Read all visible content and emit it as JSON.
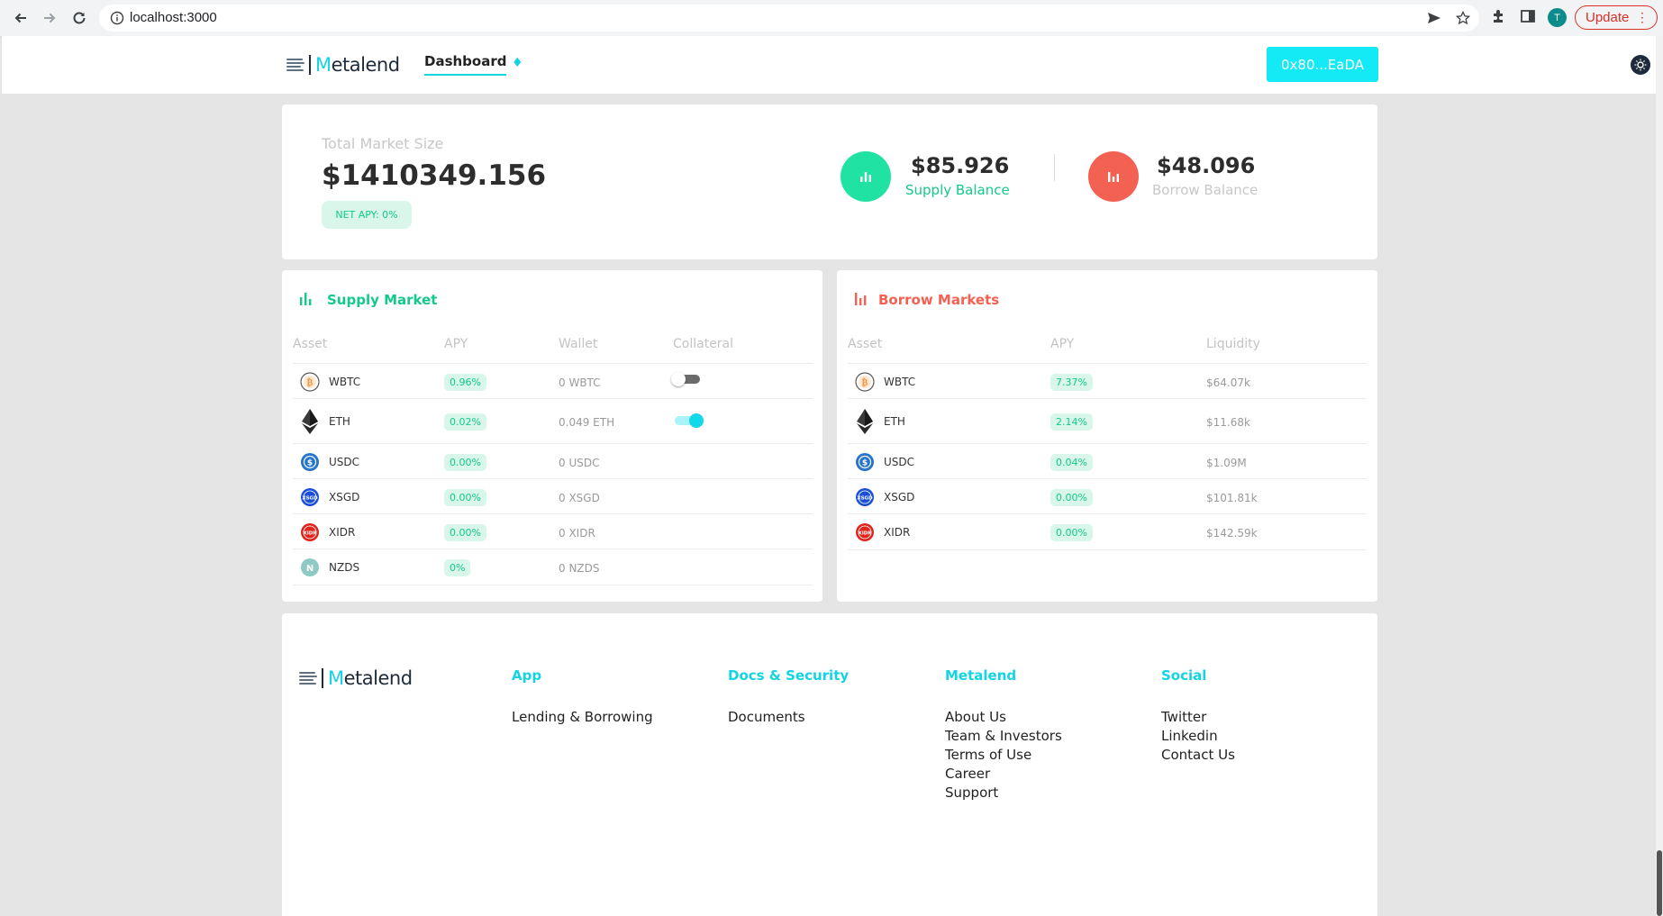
{
  "browser": {
    "url": "localhost:3000",
    "profile_initial": "T",
    "update_label": "Update"
  },
  "header": {
    "logo_text_accent": "M",
    "logo_text_rest": "etalend",
    "nav_dashboard": "Dashboard",
    "wallet_address": "0x80...EaDA"
  },
  "summary": {
    "total_market_size_label": "Total Market Size",
    "total_market_size_value": "$1410349.156",
    "net_apy": "NET APY: 0%",
    "supply_balance_value": "$85.926",
    "supply_balance_label": "Supply Balance",
    "borrow_balance_value": "$48.096",
    "borrow_balance_label": "Borrow Balance"
  },
  "supply_market": {
    "title": "Supply Market",
    "columns": [
      "Asset",
      "APY",
      "Wallet",
      "Collateral"
    ],
    "rows": [
      {
        "asset": "WBTC",
        "apy": "0.96%",
        "wallet": "0 WBTC",
        "collateral": "off"
      },
      {
        "asset": "ETH",
        "apy": "0.02%",
        "wallet": "0.049 ETH",
        "collateral": "on"
      },
      {
        "asset": "USDC",
        "apy": "0.00%",
        "wallet": "0 USDC"
      },
      {
        "asset": "XSGD",
        "apy": "0.00%",
        "wallet": "0 XSGD"
      },
      {
        "asset": "XIDR",
        "apy": "0.00%",
        "wallet": "0 XIDR"
      },
      {
        "asset": "NZDS",
        "apy": "0%",
        "wallet": "0 NZDS"
      }
    ]
  },
  "borrow_market": {
    "title": "Borrow Markets",
    "columns": [
      "Asset",
      "APY",
      "Liquidity"
    ],
    "rows": [
      {
        "asset": "WBTC",
        "apy": "7.37%",
        "liquidity": "$64.07k"
      },
      {
        "asset": "ETH",
        "apy": "2.14%",
        "liquidity": "$11.68k"
      },
      {
        "asset": "USDC",
        "apy": "0.04%",
        "liquidity": "$1.09M"
      },
      {
        "asset": "XSGD",
        "apy": "0.00%",
        "liquidity": "$101.81k"
      },
      {
        "asset": "XIDR",
        "apy": "0.00%",
        "liquidity": "$142.59k"
      }
    ]
  },
  "footer": {
    "columns": [
      {
        "title": "App",
        "links": [
          "Lending & Borrowing"
        ]
      },
      {
        "title": "Docs & Security",
        "links": [
          "Documents"
        ]
      },
      {
        "title": "Metalend",
        "links": [
          "About Us",
          "Team & Investors",
          "Terms of Use",
          "Career",
          "Support"
        ]
      },
      {
        "title": "Social",
        "links": [
          "Twitter",
          "Linkedin",
          "Contact Us"
        ]
      }
    ]
  },
  "colors": {
    "accent_cyan": "#12d4e3",
    "supply_green": "#14c98b",
    "borrow_red": "#f26152"
  }
}
